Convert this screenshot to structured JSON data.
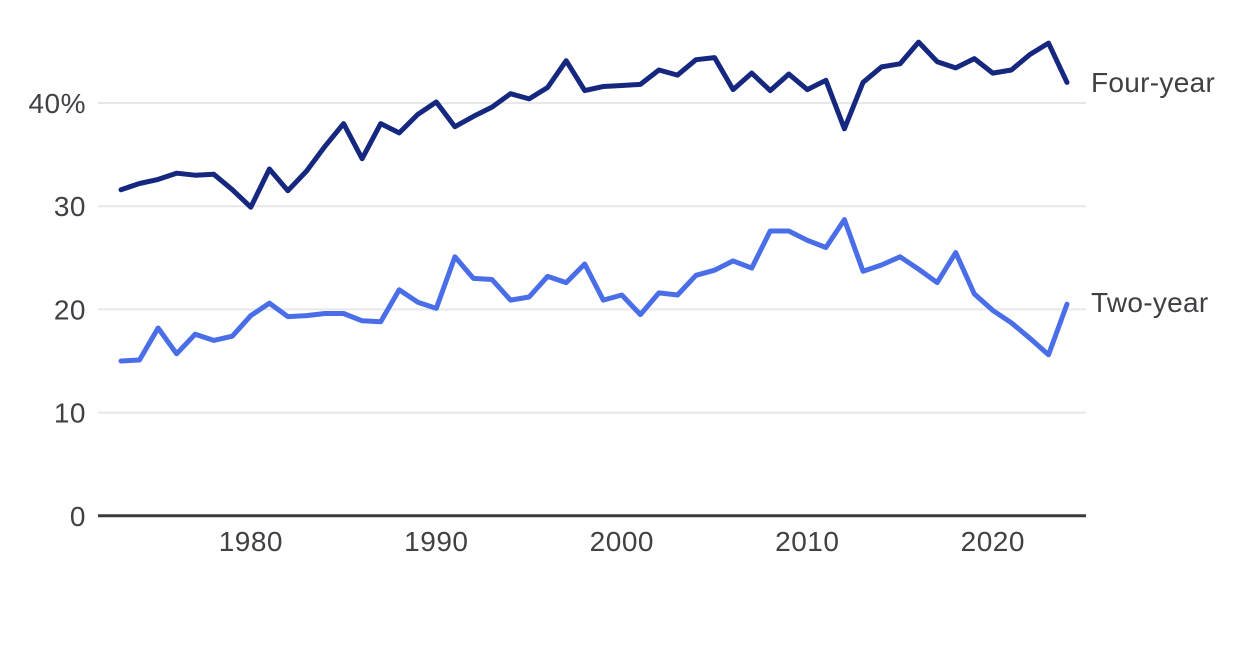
{
  "chart_data": {
    "type": "line",
    "title": "",
    "xlabel": "",
    "ylabel": "",
    "grid": "horizontal",
    "legend_position": "right-end-labels",
    "ylim": [
      0,
      47
    ],
    "x_range": [
      1973,
      2024
    ],
    "y_ticks": [
      {
        "value": 40,
        "label": "40%"
      },
      {
        "value": 30,
        "label": "30"
      },
      {
        "value": 20,
        "label": "20"
      },
      {
        "value": 10,
        "label": "10"
      },
      {
        "value": 0,
        "label": "0"
      }
    ],
    "x_ticks": [
      {
        "value": 1980,
        "label": "1980"
      },
      {
        "value": 1990,
        "label": "1990"
      },
      {
        "value": 2000,
        "label": "2000"
      },
      {
        "value": 2010,
        "label": "2010"
      },
      {
        "value": 2020,
        "label": "2020"
      }
    ],
    "x": [
      1973,
      1974,
      1975,
      1976,
      1977,
      1978,
      1979,
      1980,
      1981,
      1982,
      1983,
      1984,
      1985,
      1986,
      1987,
      1988,
      1989,
      1990,
      1991,
      1992,
      1993,
      1994,
      1995,
      1996,
      1997,
      1998,
      1999,
      2000,
      2001,
      2002,
      2003,
      2004,
      2005,
      2006,
      2007,
      2008,
      2009,
      2010,
      2011,
      2012,
      2013,
      2014,
      2015,
      2016,
      2017,
      2018,
      2019,
      2020,
      2021,
      2022,
      2023,
      2024
    ],
    "series": [
      {
        "name": "Four-year",
        "color": "#16277f",
        "values": [
          31.6,
          32.2,
          32.6,
          33.2,
          33.0,
          33.1,
          31.6,
          29.9,
          33.6,
          31.5,
          33.4,
          35.8,
          38.0,
          34.6,
          38.0,
          37.1,
          38.9,
          40.1,
          37.7,
          38.7,
          39.6,
          40.9,
          40.4,
          41.5,
          44.1,
          41.2,
          41.6,
          41.7,
          41.8,
          43.2,
          42.7,
          44.2,
          44.4,
          41.3,
          42.9,
          41.2,
          42.8,
          41.3,
          42.2,
          37.5,
          42.0,
          43.5,
          43.8,
          45.9,
          44.0,
          43.4,
          44.3,
          42.9,
          43.2,
          44.7,
          45.8,
          42.0
        ]
      },
      {
        "name": "Two-year",
        "color": "#4a6de8",
        "values": [
          15.0,
          15.1,
          18.2,
          15.7,
          17.6,
          17.0,
          17.4,
          19.4,
          20.6,
          19.3,
          19.4,
          19.6,
          19.6,
          18.9,
          18.8,
          21.9,
          20.7,
          20.1,
          25.1,
          23.0,
          22.9,
          20.9,
          21.2,
          23.2,
          22.6,
          24.4,
          20.9,
          21.4,
          19.5,
          21.6,
          21.4,
          23.3,
          23.8,
          24.7,
          24.0,
          27.6,
          27.6,
          26.7,
          26.0,
          28.7,
          23.7,
          24.3,
          25.1,
          23.9,
          22.6,
          25.5,
          21.5,
          19.9,
          18.7,
          17.2,
          15.6,
          20.5
        ]
      }
    ],
    "colors": {
      "axis_line": "#3b3b3b",
      "gridline": "#e8e8e8",
      "tick_text": "#404145"
    }
  }
}
